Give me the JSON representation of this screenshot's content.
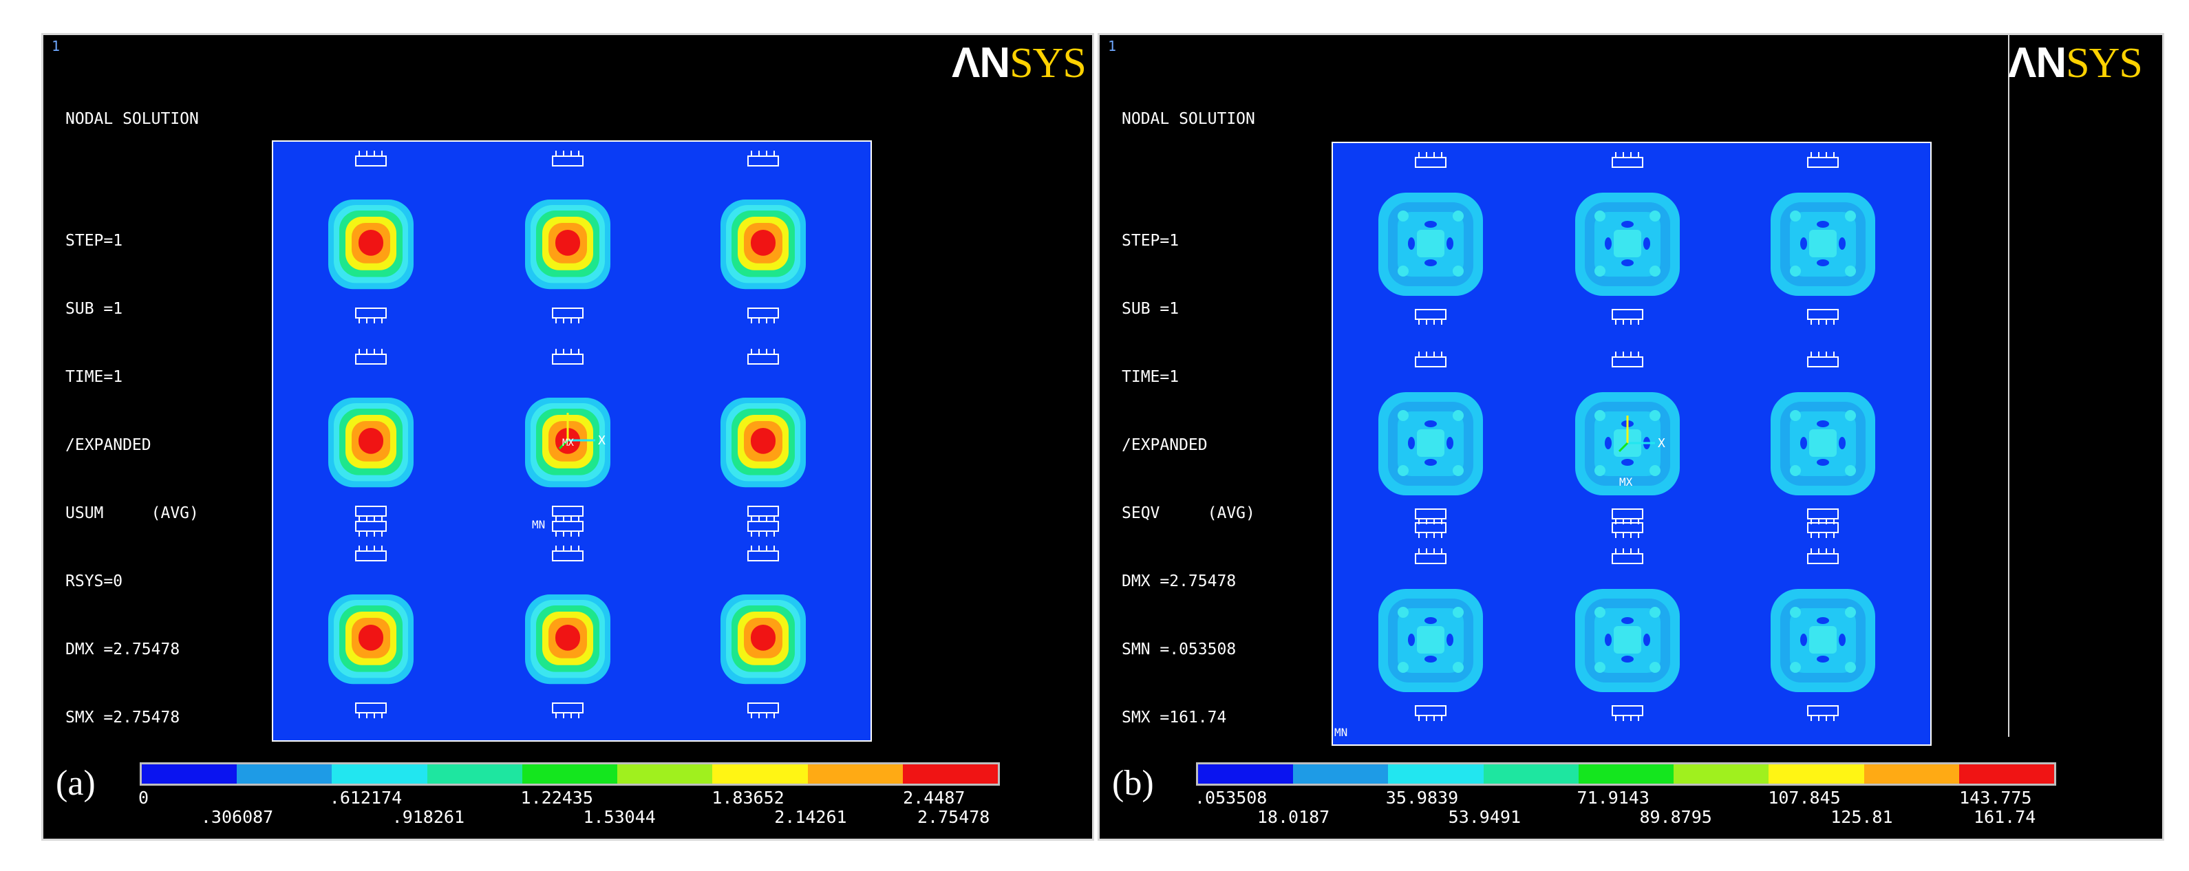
{
  "panels": [
    {
      "tag": "(a)",
      "corner_number": "1",
      "logo_an": "ΛN",
      "logo_sys": "SYS",
      "info_lines": [
        "NODAL SOLUTION",
        "",
        "STEP=1",
        "SUB =1",
        "TIME=1",
        "/EXPANDED",
        "USUM     (AVG)",
        "RSYS=0",
        "DMX =2.75478",
        "SMX =2.75478"
      ],
      "plot_labels": {
        "mn": "MN",
        "mx": "MX",
        "axis_x": "X"
      },
      "colorbar_labels_top": [
        "0",
        ".612174",
        "1.22435",
        "1.83652",
        "2.4487"
      ],
      "colorbar_labels_bottom": [
        ".306087",
        ".918261",
        "1.53044",
        "2.14261",
        "2.75478"
      ],
      "field": "displacement"
    },
    {
      "tag": "(b)",
      "corner_number": "1",
      "logo_an": "ΛN",
      "logo_sys": "SYS",
      "info_lines": [
        "NODAL SOLUTION",
        "",
        "STEP=1",
        "SUB =1",
        "TIME=1",
        "/EXPANDED",
        "SEQV     (AVG)",
        "DMX =2.75478",
        "SMN =.053508",
        "SMX =161.74"
      ],
      "plot_labels": {
        "mn": "MN",
        "mx": "MX",
        "axis_x": "X"
      },
      "colorbar_labels_top": [
        ".053508",
        "35.9839",
        "71.9143",
        "107.845",
        "143.775"
      ],
      "colorbar_labels_bottom": [
        "18.0187",
        "53.9491",
        "89.8795",
        "125.81",
        "161.74"
      ],
      "field": "stress"
    }
  ],
  "colors": {
    "colorbar": [
      "#0a14f0",
      "#1e9be6",
      "#22e6f0",
      "#1ee6a0",
      "#14e61e",
      "#a0f01e",
      "#fff514",
      "#ffaa14",
      "#f01414"
    ],
    "background_field": "#0a3cf5",
    "ring_cyan": "#22c8f5",
    "ring_light": "#3ce6f0",
    "ring_green": "#1ee68c",
    "ring_yellow": "#f5f514",
    "ring_orange": "#ffa014",
    "core_red": "#f01414"
  }
}
